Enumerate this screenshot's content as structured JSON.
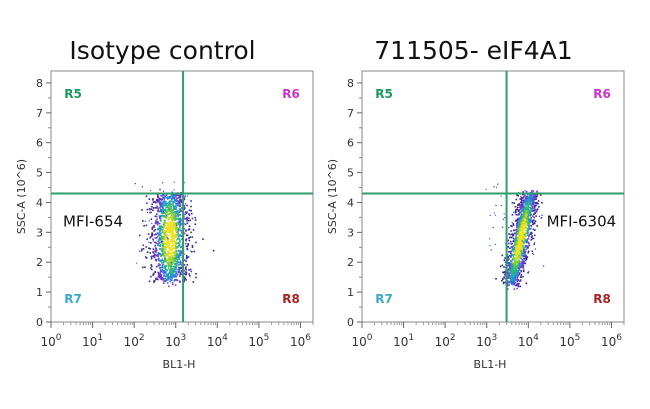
{
  "chart_data": [
    {
      "type": "scatter",
      "title": "Isotype control",
      "xlabel": "BL1-H",
      "ylabel": "SSC-A (10^6)",
      "x_scale": "log",
      "xlim": [
        1,
        2000000
      ],
      "ylim": [
        0,
        8.4
      ],
      "x_ticks": [
        "10^0",
        "10^1",
        "10^2",
        "10^3",
        "10^4",
        "10^5",
        "10^6"
      ],
      "y_ticks": [
        "0",
        "1",
        "2",
        "3",
        "4",
        "5",
        "6",
        "7",
        "8"
      ],
      "gate": {
        "x": 1500,
        "y": 4.3
      },
      "quadrants": [
        {
          "label": "R5",
          "position": "top-left",
          "color": "#1a9a5a"
        },
        {
          "label": "R6",
          "position": "top-right",
          "color": "#cc33cc"
        },
        {
          "label": "R7",
          "position": "bottom-left",
          "color": "#3aaacc"
        },
        {
          "label": "R8",
          "position": "bottom-right",
          "color": "#aa2222"
        }
      ],
      "annotation": "MFI-654",
      "population": {
        "x_center": 700,
        "x_log_spread": 0.22,
        "y_min": 1.4,
        "y_max": 4.3,
        "x_skew": 0
      },
      "gate_color": "#2e9e6a"
    },
    {
      "type": "scatter",
      "title": "711505- eIF4A1",
      "xlabel": "BL1-H",
      "ylabel": "SSC-A (10^6)",
      "x_scale": "log",
      "xlim": [
        1,
        2000000
      ],
      "ylim": [
        0,
        8.4
      ],
      "x_ticks": [
        "10^0",
        "10^1",
        "10^2",
        "10^3",
        "10^4",
        "10^5",
        "10^6"
      ],
      "y_ticks": [
        "0",
        "1",
        "2",
        "3",
        "4",
        "5",
        "6",
        "7",
        "8"
      ],
      "gate": {
        "x": 3000,
        "y": 4.3
      },
      "quadrants": [
        {
          "label": "R5",
          "position": "top-left",
          "color": "#1a9a5a"
        },
        {
          "label": "R6",
          "position": "top-right",
          "color": "#cc33cc"
        },
        {
          "label": "R7",
          "position": "bottom-left",
          "color": "#3aaacc"
        },
        {
          "label": "R8",
          "position": "bottom-right",
          "color": "#aa2222"
        }
      ],
      "annotation": "MFI-6304",
      "population": {
        "x_center": 6300,
        "x_log_spread": 0.12,
        "y_min": 1.3,
        "y_max": 4.3,
        "x_skew": 0.45
      },
      "gate_color": "#2e9e6a"
    }
  ]
}
